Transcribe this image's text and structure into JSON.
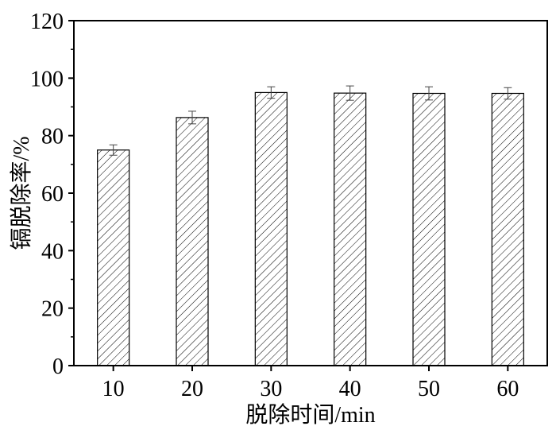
{
  "chart_data": {
    "type": "bar",
    "categories": [
      "10",
      "20",
      "30",
      "40",
      "50",
      "60"
    ],
    "values": [
      75.0,
      86.3,
      95.0,
      94.8,
      94.7,
      94.7
    ],
    "errors": [
      1.8,
      2.2,
      2.0,
      2.5,
      2.3,
      2.0
    ],
    "xlabel": "脱除时间/min",
    "ylabel": "镉脱除率/%",
    "ylim": [
      0,
      120
    ],
    "yticks": [
      0,
      20,
      40,
      60,
      80,
      100,
      120
    ],
    "bar_fill": "hatched",
    "bar_color": "#000000",
    "grid": false,
    "legend": "none"
  }
}
